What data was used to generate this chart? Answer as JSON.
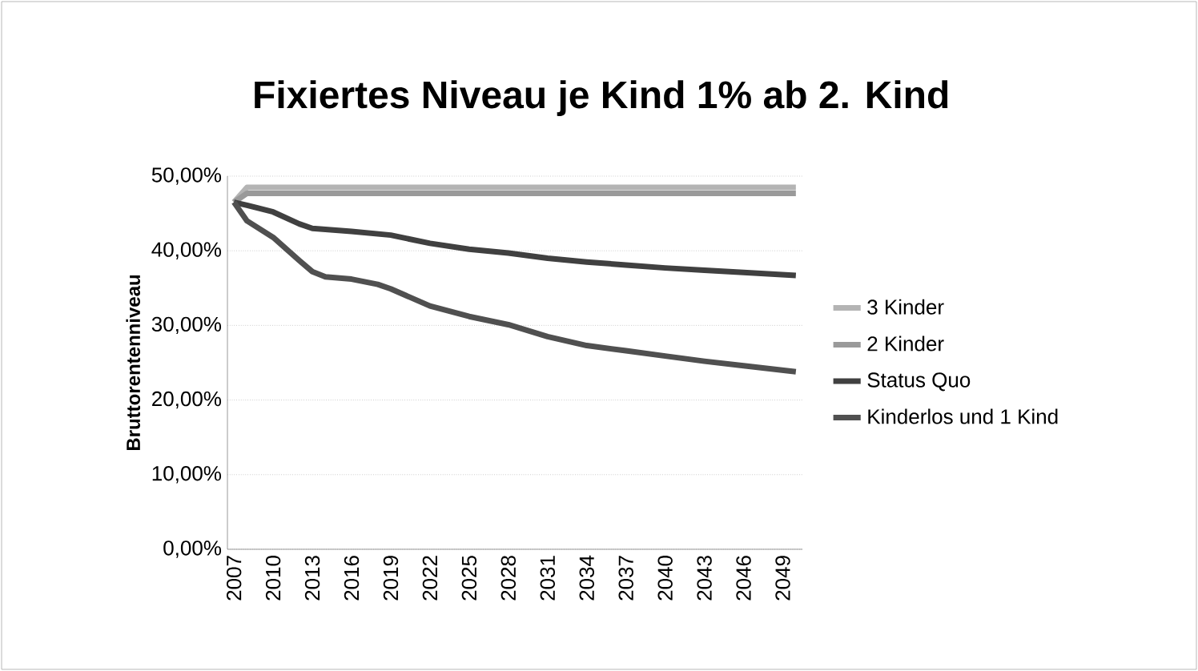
{
  "chart_data": {
    "type": "line",
    "title": "Fixiertes Niveau je Kind 1% ab 2. Kind",
    "ylabel": "Bruttorentenniveau",
    "xlim": [
      2006.5,
      2050.5
    ],
    "xticks": [
      2007,
      2010,
      2013,
      2016,
      2019,
      2022,
      2025,
      2028,
      2031,
      2034,
      2037,
      2040,
      2043,
      2046,
      2049
    ],
    "ylim": [
      0,
      50
    ],
    "yticks": [
      {
        "value": 0,
        "label": "0,00%"
      },
      {
        "value": 10,
        "label": "10,00%"
      },
      {
        "value": 20,
        "label": "20,00%"
      },
      {
        "value": 30,
        "label": "30,00%"
      },
      {
        "value": 40,
        "label": "40,00%"
      },
      {
        "value": 50,
        "label": "50,00%"
      }
    ],
    "grid": "y",
    "legend": "right",
    "marker": "none",
    "series": [
      {
        "name": "3 Kinder",
        "color": "#b4b4b4",
        "x": [
          2007,
          2008,
          2050
        ],
        "values": [
          46.5,
          48.5,
          48.5
        ]
      },
      {
        "name": "2 Kinder",
        "color": "#9a9a9a",
        "x": [
          2007,
          2008,
          2050
        ],
        "values": [
          46.5,
          47.7,
          47.7
        ]
      },
      {
        "name": "Status Quo",
        "color": "#404040",
        "x": [
          2007,
          2008,
          2010,
          2012,
          2013,
          2016,
          2019,
          2022,
          2025,
          2028,
          2031,
          2034,
          2037,
          2040,
          2043,
          2046,
          2050
        ],
        "values": [
          46.5,
          46.1,
          45.2,
          43.6,
          43.0,
          42.6,
          42.1,
          41.0,
          40.2,
          39.7,
          39.0,
          38.5,
          38.1,
          37.7,
          37.4,
          37.1,
          36.7
        ]
      },
      {
        "name": "Kinderlos und 1 Kind",
        "color": "#505050",
        "x": [
          2007,
          2008,
          2010,
          2012,
          2013,
          2014,
          2016,
          2018,
          2019,
          2022,
          2025,
          2028,
          2031,
          2034,
          2037,
          2040,
          2043,
          2046,
          2050
        ],
        "values": [
          46.5,
          44.0,
          41.8,
          38.7,
          37.2,
          36.5,
          36.2,
          35.5,
          34.9,
          32.6,
          31.2,
          30.1,
          28.5,
          27.3,
          26.6,
          25.9,
          25.2,
          24.6,
          23.8
        ]
      }
    ]
  }
}
